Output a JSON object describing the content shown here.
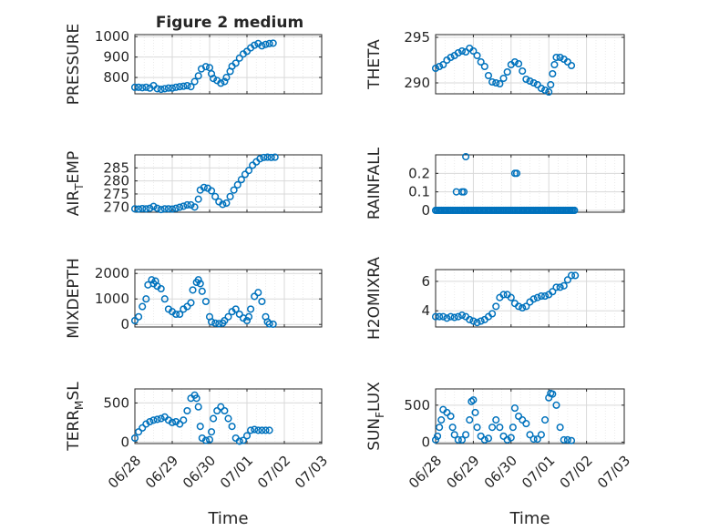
{
  "figure_title": "Figure 2 medium",
  "colors": {
    "marker": "#0072BD",
    "axis": "#262626",
    "grid": "#d9d9d9"
  },
  "chart_data": [
    {
      "type": "scatter",
      "ylabel": "PRESSURE",
      "ylabel_sub": null,
      "ylim": [
        720,
        1010
      ],
      "yticks": [
        800,
        900,
        1000
      ],
      "ytick_labels": [
        "800",
        "900",
        "1000"
      ],
      "xlim_days": [
        0,
        5
      ],
      "xtick_labels": [],
      "grid": true,
      "points": [
        [
          0.0,
          752
        ],
        [
          0.1,
          752
        ],
        [
          0.2,
          750
        ],
        [
          0.3,
          752
        ],
        [
          0.4,
          748
        ],
        [
          0.5,
          760
        ],
        [
          0.6,
          745
        ],
        [
          0.7,
          742
        ],
        [
          0.8,
          745
        ],
        [
          0.9,
          748
        ],
        [
          1.0,
          748
        ],
        [
          1.1,
          752
        ],
        [
          1.2,
          755
        ],
        [
          1.3,
          757
        ],
        [
          1.4,
          760
        ],
        [
          1.5,
          755
        ],
        [
          1.6,
          780
        ],
        [
          1.7,
          808
        ],
        [
          1.78,
          842
        ],
        [
          1.9,
          853
        ],
        [
          2.0,
          848
        ],
        [
          2.05,
          818
        ],
        [
          2.1,
          795
        ],
        [
          2.2,
          785
        ],
        [
          2.3,
          772
        ],
        [
          2.4,
          780
        ],
        [
          2.45,
          800
        ],
        [
          2.55,
          830
        ],
        [
          2.6,
          855
        ],
        [
          2.7,
          870
        ],
        [
          2.8,
          895
        ],
        [
          2.9,
          915
        ],
        [
          3.0,
          928
        ],
        [
          3.1,
          945
        ],
        [
          3.2,
          958
        ],
        [
          3.3,
          966
        ],
        [
          3.4,
          955
        ],
        [
          3.5,
          962
        ],
        [
          3.6,
          966
        ],
        [
          3.7,
          968
        ]
      ]
    },
    {
      "type": "scatter",
      "ylabel": "THETA",
      "ylabel_sub": null,
      "ylim": [
        288.8,
        295.3
      ],
      "yticks": [
        290,
        295
      ],
      "ytick_labels": [
        "290",
        "295"
      ],
      "xlim_days": [
        0,
        5
      ],
      "xtick_labels": [],
      "grid": true,
      "points": [
        [
          0.0,
          291.6
        ],
        [
          0.1,
          291.8
        ],
        [
          0.2,
          292.0
        ],
        [
          0.3,
          292.5
        ],
        [
          0.4,
          292.8
        ],
        [
          0.5,
          293.0
        ],
        [
          0.6,
          293.3
        ],
        [
          0.7,
          293.5
        ],
        [
          0.8,
          293.4
        ],
        [
          0.9,
          293.8
        ],
        [
          1.0,
          293.5
        ],
        [
          1.1,
          293.0
        ],
        [
          1.2,
          292.3
        ],
        [
          1.3,
          291.8
        ],
        [
          1.4,
          290.8
        ],
        [
          1.5,
          290.1
        ],
        [
          1.6,
          290.0
        ],
        [
          1.7,
          289.9
        ],
        [
          1.8,
          290.5
        ],
        [
          1.9,
          291.2
        ],
        [
          2.0,
          292.0
        ],
        [
          2.1,
          292.3
        ],
        [
          2.2,
          292.1
        ],
        [
          2.3,
          291.3
        ],
        [
          2.4,
          290.4
        ],
        [
          2.5,
          290.2
        ],
        [
          2.6,
          290.0
        ],
        [
          2.7,
          289.8
        ],
        [
          2.8,
          289.4
        ],
        [
          2.9,
          289.2
        ],
        [
          3.0,
          289.0
        ],
        [
          3.05,
          289.8
        ],
        [
          3.1,
          291.0
        ],
        [
          3.15,
          292.0
        ],
        [
          3.2,
          292.8
        ],
        [
          3.3,
          292.8
        ],
        [
          3.4,
          292.6
        ],
        [
          3.5,
          292.3
        ],
        [
          3.6,
          291.9
        ]
      ]
    },
    {
      "type": "scatter",
      "ylabel": "AIR",
      "ylabel_sub": "T",
      "ylabel_rest": "EMP",
      "ylim": [
        268,
        290
      ],
      "yticks": [
        270,
        275,
        280,
        285
      ],
      "ytick_labels": [
        "270",
        "275",
        "280",
        "285"
      ],
      "xlim_days": [
        0,
        5
      ],
      "xtick_labels": [],
      "grid": true,
      "points": [
        [
          0.0,
          269.3
        ],
        [
          0.1,
          269.2
        ],
        [
          0.2,
          269.4
        ],
        [
          0.3,
          269.3
        ],
        [
          0.4,
          269.5
        ],
        [
          0.5,
          270.2
        ],
        [
          0.6,
          269.5
        ],
        [
          0.7,
          269.0
        ],
        [
          0.8,
          269.3
        ],
        [
          0.9,
          269.3
        ],
        [
          1.0,
          269.2
        ],
        [
          1.1,
          269.5
        ],
        [
          1.2,
          269.9
        ],
        [
          1.3,
          270.3
        ],
        [
          1.4,
          270.8
        ],
        [
          1.5,
          270.8
        ],
        [
          1.6,
          270.0
        ],
        [
          1.7,
          273.0
        ],
        [
          1.75,
          276.5
        ],
        [
          1.85,
          277.5
        ],
        [
          1.95,
          277.2
        ],
        [
          2.05,
          276.2
        ],
        [
          2.15,
          274.0
        ],
        [
          2.25,
          272.0
        ],
        [
          2.35,
          271.0
        ],
        [
          2.45,
          271.5
        ],
        [
          2.55,
          274.0
        ],
        [
          2.65,
          276.5
        ],
        [
          2.75,
          278.5
        ],
        [
          2.85,
          280.5
        ],
        [
          2.95,
          282.5
        ],
        [
          3.05,
          284.0
        ],
        [
          3.15,
          286.0
        ],
        [
          3.25,
          287.3
        ],
        [
          3.35,
          288.5
        ],
        [
          3.45,
          289.0
        ],
        [
          3.55,
          289.1
        ],
        [
          3.65,
          289.0
        ],
        [
          3.75,
          289.1
        ]
      ]
    },
    {
      "type": "scatter",
      "ylabel": "RAINFALL",
      "ylabel_sub": null,
      "ylim": [
        -0.01,
        0.3
      ],
      "yticks": [
        0,
        0.1,
        0.2
      ],
      "ytick_labels": [
        "0",
        "0.1",
        "0.2"
      ],
      "xlim_days": [
        0,
        5
      ],
      "xtick_labels": [],
      "grid": true,
      "zero_run": [
        0.0,
        3.7,
        0.04
      ],
      "points": [
        [
          0.55,
          0.1
        ],
        [
          0.7,
          0.1
        ],
        [
          0.75,
          0.1
        ],
        [
          0.8,
          0.29
        ],
        [
          2.1,
          0.2
        ],
        [
          2.15,
          0.2
        ]
      ]
    },
    {
      "type": "scatter",
      "ylabel": "MIXDEPTH",
      "ylabel_sub": null,
      "ylim": [
        -100,
        2150
      ],
      "yticks": [
        0,
        1000,
        2000
      ],
      "ytick_labels": [
        "0",
        "1000",
        "2000"
      ],
      "xlim_days": [
        0,
        5
      ],
      "xtick_labels": [],
      "grid": true,
      "points": [
        [
          0.0,
          150
        ],
        [
          0.1,
          300
        ],
        [
          0.2,
          700
        ],
        [
          0.3,
          1000
        ],
        [
          0.35,
          1550
        ],
        [
          0.45,
          1750
        ],
        [
          0.5,
          1600
        ],
        [
          0.55,
          1700
        ],
        [
          0.6,
          1500
        ],
        [
          0.7,
          1400
        ],
        [
          0.8,
          1000
        ],
        [
          0.9,
          600
        ],
        [
          1.0,
          500
        ],
        [
          1.1,
          400
        ],
        [
          1.2,
          400
        ],
        [
          1.3,
          600
        ],
        [
          1.4,
          700
        ],
        [
          1.5,
          850
        ],
        [
          1.55,
          1350
        ],
        [
          1.65,
          1650
        ],
        [
          1.7,
          1750
        ],
        [
          1.75,
          1600
        ],
        [
          1.8,
          1300
        ],
        [
          1.9,
          900
        ],
        [
          2.0,
          300
        ],
        [
          2.05,
          100
        ],
        [
          2.15,
          50
        ],
        [
          2.25,
          30
        ],
        [
          2.35,
          50
        ],
        [
          2.4,
          150
        ],
        [
          2.5,
          300
        ],
        [
          2.6,
          500
        ],
        [
          2.7,
          600
        ],
        [
          2.8,
          400
        ],
        [
          2.9,
          250
        ],
        [
          3.0,
          150
        ],
        [
          3.05,
          300
        ],
        [
          3.1,
          600
        ],
        [
          3.2,
          1100
        ],
        [
          3.3,
          1250
        ],
        [
          3.4,
          900
        ],
        [
          3.5,
          300
        ],
        [
          3.55,
          100
        ],
        [
          3.6,
          20
        ],
        [
          3.7,
          10
        ]
      ]
    },
    {
      "type": "scatter",
      "ylabel": "H2OMIXRA",
      "ylabel_sub": null,
      "ylim": [
        2.9,
        6.8
      ],
      "yticks": [
        4,
        6
      ],
      "ytick_labels": [
        "4",
        "6"
      ],
      "xlim_days": [
        0,
        5
      ],
      "xtick_labels": [],
      "grid": true,
      "points": [
        [
          0.0,
          3.6
        ],
        [
          0.1,
          3.6
        ],
        [
          0.2,
          3.6
        ],
        [
          0.3,
          3.5
        ],
        [
          0.4,
          3.6
        ],
        [
          0.5,
          3.55
        ],
        [
          0.6,
          3.6
        ],
        [
          0.7,
          3.7
        ],
        [
          0.8,
          3.6
        ],
        [
          0.9,
          3.4
        ],
        [
          1.0,
          3.3
        ],
        [
          1.1,
          3.2
        ],
        [
          1.2,
          3.3
        ],
        [
          1.3,
          3.4
        ],
        [
          1.4,
          3.6
        ],
        [
          1.5,
          3.8
        ],
        [
          1.6,
          4.3
        ],
        [
          1.7,
          4.9
        ],
        [
          1.8,
          5.1
        ],
        [
          1.9,
          5.1
        ],
        [
          2.0,
          4.9
        ],
        [
          2.1,
          4.5
        ],
        [
          2.2,
          4.3
        ],
        [
          2.3,
          4.2
        ],
        [
          2.4,
          4.3
        ],
        [
          2.5,
          4.6
        ],
        [
          2.6,
          4.8
        ],
        [
          2.7,
          4.9
        ],
        [
          2.8,
          5.0
        ],
        [
          2.9,
          5.0
        ],
        [
          3.0,
          5.1
        ],
        [
          3.1,
          5.3
        ],
        [
          3.2,
          5.6
        ],
        [
          3.3,
          5.6
        ],
        [
          3.4,
          5.7
        ],
        [
          3.5,
          6.1
        ],
        [
          3.6,
          6.4
        ],
        [
          3.7,
          6.4
        ]
      ]
    },
    {
      "type": "scatter",
      "ylabel": "TERR",
      "ylabel_sub": "M",
      "ylabel_rest": "SL",
      "ylim": [
        -20,
        680
      ],
      "yticks": [
        0,
        500
      ],
      "ytick_labels": [
        "0",
        "500"
      ],
      "xlim_days": [
        0,
        5
      ],
      "xtick_labels": [
        "06/28",
        "06/29",
        "06/30",
        "07/01",
        "07/02",
        "07/03"
      ],
      "xlabel": "Time",
      "grid": true,
      "points": [
        [
          0.0,
          50
        ],
        [
          0.1,
          130
        ],
        [
          0.2,
          180
        ],
        [
          0.3,
          230
        ],
        [
          0.4,
          260
        ],
        [
          0.5,
          280
        ],
        [
          0.6,
          290
        ],
        [
          0.7,
          300
        ],
        [
          0.8,
          320
        ],
        [
          0.9,
          280
        ],
        [
          1.0,
          250
        ],
        [
          1.1,
          260
        ],
        [
          1.2,
          230
        ],
        [
          1.3,
          280
        ],
        [
          1.4,
          400
        ],
        [
          1.5,
          560
        ],
        [
          1.6,
          600
        ],
        [
          1.65,
          560
        ],
        [
          1.7,
          450
        ],
        [
          1.75,
          200
        ],
        [
          1.8,
          50
        ],
        [
          1.9,
          20
        ],
        [
          2.0,
          30
        ],
        [
          2.05,
          130
        ],
        [
          2.1,
          300
        ],
        [
          2.2,
          400
        ],
        [
          2.3,
          450
        ],
        [
          2.4,
          400
        ],
        [
          2.5,
          300
        ],
        [
          2.6,
          200
        ],
        [
          2.7,
          50
        ],
        [
          2.8,
          10
        ],
        [
          2.9,
          20
        ],
        [
          3.0,
          80
        ],
        [
          3.1,
          150
        ],
        [
          3.2,
          160
        ],
        [
          3.3,
          150
        ],
        [
          3.4,
          150
        ],
        [
          3.5,
          150
        ],
        [
          3.6,
          150
        ]
      ]
    },
    {
      "type": "scatter",
      "ylabel": "SUN",
      "ylabel_sub": "F",
      "ylabel_rest": "LUX",
      "ylim": [
        -20,
        720
      ],
      "yticks": [
        0,
        500
      ],
      "ytick_labels": [
        "0",
        "500"
      ],
      "xlim_days": [
        0,
        5
      ],
      "xtick_labels": [
        "06/28",
        "06/29",
        "06/30",
        "07/01",
        "07/02",
        "07/03"
      ],
      "xlabel": "Time",
      "grid": true,
      "points": [
        [
          0.0,
          30
        ],
        [
          0.05,
          80
        ],
        [
          0.1,
          200
        ],
        [
          0.15,
          300
        ],
        [
          0.2,
          440
        ],
        [
          0.3,
          400
        ],
        [
          0.4,
          350
        ],
        [
          0.45,
          200
        ],
        [
          0.5,
          100
        ],
        [
          0.6,
          30
        ],
        [
          0.7,
          30
        ],
        [
          0.8,
          100
        ],
        [
          0.9,
          300
        ],
        [
          0.95,
          550
        ],
        [
          1.0,
          570
        ],
        [
          1.05,
          400
        ],
        [
          1.1,
          200
        ],
        [
          1.2,
          80
        ],
        [
          1.3,
          30
        ],
        [
          1.4,
          50
        ],
        [
          1.5,
          200
        ],
        [
          1.6,
          300
        ],
        [
          1.7,
          200
        ],
        [
          1.8,
          80
        ],
        [
          1.9,
          30
        ],
        [
          2.0,
          60
        ],
        [
          2.05,
          200
        ],
        [
          2.1,
          460
        ],
        [
          2.2,
          350
        ],
        [
          2.3,
          300
        ],
        [
          2.4,
          250
        ],
        [
          2.5,
          100
        ],
        [
          2.6,
          40
        ],
        [
          2.7,
          40
        ],
        [
          2.8,
          100
        ],
        [
          2.9,
          300
        ],
        [
          3.0,
          600
        ],
        [
          3.05,
          660
        ],
        [
          3.1,
          650
        ],
        [
          3.2,
          500
        ],
        [
          3.3,
          200
        ],
        [
          3.4,
          30
        ],
        [
          3.5,
          30
        ],
        [
          3.6,
          20
        ]
      ]
    }
  ]
}
